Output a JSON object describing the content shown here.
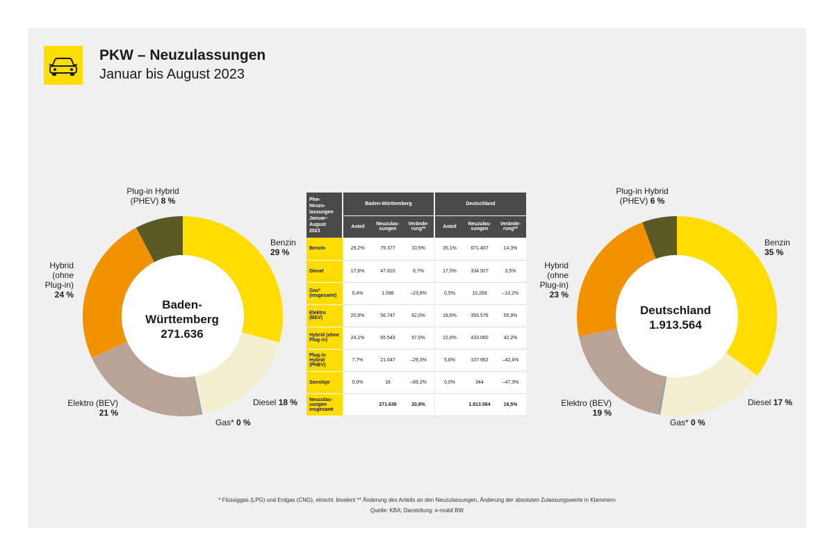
{
  "header": {
    "title": "PKW – Neuzulassungen",
    "subtitle": "Januar bis August 2023",
    "logo_icon": "car-icon",
    "brand_color": "#ffdd00"
  },
  "chart_data": [
    {
      "type": "pie",
      "variant": "donut",
      "center_label": [
        "Baden-",
        "Württemberg",
        "271.636"
      ],
      "categories": [
        "Benzin",
        "Diesel",
        "Gas*",
        "Elektro (BEV)",
        "Hybrid (ohne Plug-in)",
        "Plug-in Hybrid (PHEV)"
      ],
      "values": [
        29.2,
        17.6,
        0.4,
        20.9,
        24.1,
        7.7
      ],
      "colors": [
        "#ffdd00",
        "#f3efd0",
        "#9aa3a6",
        "#b8a395",
        "#f39200",
        "#5b5a25"
      ],
      "labels": {
        "benzin": {
          "name": "Benzin",
          "pct": "29 %"
        },
        "diesel": {
          "name": "Diesel",
          "pct": "18 %"
        },
        "gas": {
          "name": "Gas* ",
          "pct": "0 %"
        },
        "elektro": {
          "name": "Elektro (BEV)",
          "pct": "21 %"
        },
        "hybrid": {
          "line1": "Hybrid",
          "line2": "(ohne",
          "line3": "Plug-in)",
          "pct": "24 %"
        },
        "phev": {
          "line1": "Plug-in Hybrid",
          "line2": "(PHEV) ",
          "pct": "8 %"
        }
      }
    },
    {
      "type": "pie",
      "variant": "donut",
      "center_label": [
        "Deutschland",
        "1.913.564"
      ],
      "categories": [
        "Benzin",
        "Diesel",
        "Gas*",
        "Elektro (BEV)",
        "Hybrid (ohne Plug-in)",
        "Plug-in Hybrid (PHEV)"
      ],
      "values": [
        35.1,
        17.5,
        0.5,
        18.6,
        22.6,
        5.6
      ],
      "colors": [
        "#ffdd00",
        "#f3efd0",
        "#9aa3a6",
        "#b8a395",
        "#f39200",
        "#5b5a25"
      ],
      "labels": {
        "benzin": {
          "name": "Benzin",
          "pct": "35 %"
        },
        "diesel": {
          "name": "Diesel",
          "pct": "17 %"
        },
        "gas": {
          "name": "Gas* ",
          "pct": "0 %"
        },
        "elektro": {
          "name": "Elektro (BEV)",
          "pct": "19 %"
        },
        "hybrid": {
          "line1": "Hybrid",
          "line2": "(ohne",
          "line3": "Plug-in)",
          "pct": "23 %"
        },
        "phev": {
          "line1": "Plug-in Hybrid",
          "line2": "(PHEV) ",
          "pct": "6 %"
        }
      }
    },
    {
      "type": "table",
      "corner_header": [
        "Pkw-",
        "Neuzu-",
        "lassungen",
        "Januar–",
        "August",
        "2023"
      ],
      "group_headers": [
        "Baden-Württemberg",
        "Deutschland"
      ],
      "columns": [
        "Anteil",
        "Neuzulas-sungen",
        "Verände-rung**",
        "Anteil",
        "Neuzulas-sungen",
        "Verände-rung**"
      ],
      "rows": [
        {
          "label": "Benzin",
          "cells": [
            "29,2%",
            "79.377",
            "10,5%",
            "35,1%",
            "671.407",
            "14,3%"
          ]
        },
        {
          "label": "Diesel",
          "cells": [
            "17,6%",
            "47.810",
            "6,7%",
            "17,5%",
            "334.927",
            "3,5%"
          ]
        },
        {
          "label": "Gas* (insgesamt)",
          "cells": [
            "0,4%",
            "1.096",
            "–23,8%",
            "0,5%",
            "10.269",
            "–10,2%"
          ]
        },
        {
          "label": "Elektro (BEV)",
          "cells": [
            "20,9%",
            "56.747",
            "62,0%",
            "18,6%",
            "355.576",
            "55,9%"
          ]
        },
        {
          "label": "Hybrid (ohne Plug-in)",
          "cells": [
            "24,1%",
            "65.543",
            "57,0%",
            "22,6%",
            "433.060",
            "42,2%"
          ]
        },
        {
          "label": "Plug-in Hybrid (PHEV)",
          "cells": [
            "7,7%",
            "21.047",
            "–29,3%",
            "5,6%",
            "107.962",
            "–42,4%"
          ]
        },
        {
          "label": "Sonstige",
          "cells": [
            "0,0%",
            "16",
            "–69,2%",
            "0,0%",
            "344",
            "–47,3%"
          ]
        },
        {
          "label": "Neuzulas-sungen insgesamt",
          "cells": [
            "",
            "271.636",
            "20,9%",
            "",
            "1.913.564",
            "16,5%"
          ]
        }
      ]
    }
  ],
  "footnote": "* Flüssiggas (LPG) und Erdgas (CNG), einschl. bivalent ** Änderung des Anteils an den Neuzulassungen, Änderung der absoluten Zulassungswerte in Klammern",
  "source": "Quelle: KBA; Darstellung: e-mobil BW"
}
